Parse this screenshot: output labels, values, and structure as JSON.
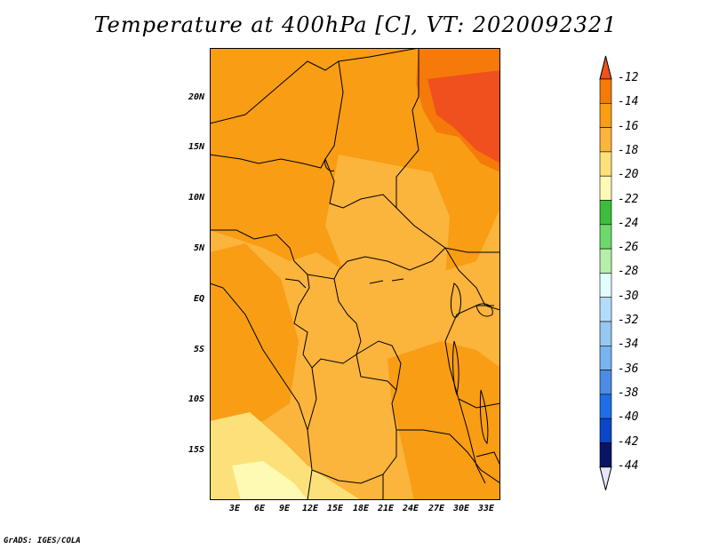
{
  "title": "Temperature at 400hPa [C], VT: 2020092321",
  "credit": "GrADS: IGES/COLA",
  "y_ticks": [
    "20N",
    "15N",
    "10N",
    "5N",
    "EQ",
    "5S",
    "10S",
    "15S"
  ],
  "x_ticks": [
    "3E",
    "6E",
    "9E",
    "12E",
    "15E",
    "18E",
    "21E",
    "24E",
    "27E",
    "30E",
    "33E"
  ],
  "colorbar": {
    "labels": [
      "-12",
      "-14",
      "-16",
      "-18",
      "-20",
      "-22",
      "-24",
      "-26",
      "-28",
      "-30",
      "-32",
      "-34",
      "-36",
      "-38",
      "-40",
      "-42",
      "-44"
    ],
    "colors": [
      "#f0501e",
      "#f57a0a",
      "#f89d14",
      "#fbb43c",
      "#fce17a",
      "#fefab4",
      "#3cbe3c",
      "#6cd96c",
      "#b4f0a8",
      "#e2fdfd",
      "#b4dcfa",
      "#96c8f5",
      "#78b4f0",
      "#4b8ce6",
      "#1e6ee6",
      "#0a46c8",
      "#0a1464"
    ],
    "top_triangle": "#f0501e",
    "bottom_triangle": "#e6e6fa"
  },
  "field_colors": {
    "warm": "#f57a0a",
    "main": "#f89d14",
    "light": "#fbb43c",
    "pale": "#fce17a",
    "palest": "#fefab4",
    "hot": "#f0501e"
  }
}
